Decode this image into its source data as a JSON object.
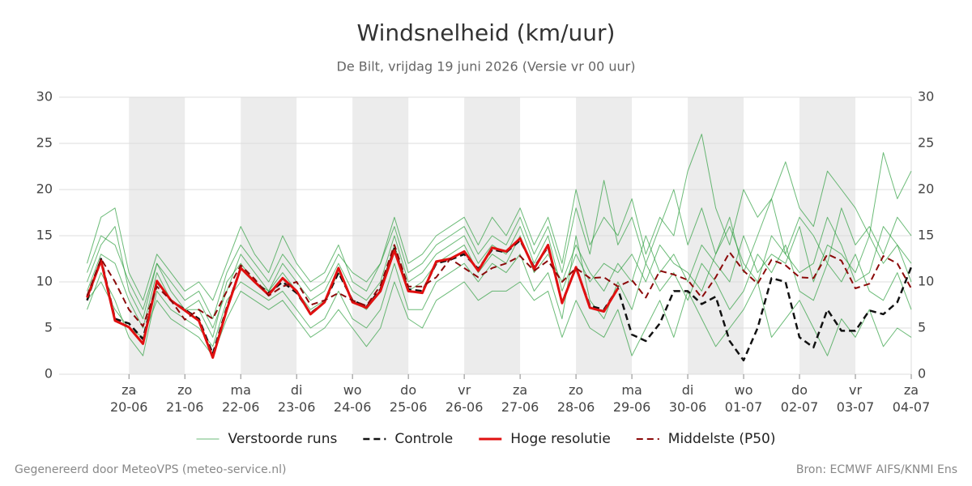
{
  "chart_data": {
    "type": "line",
    "title": "Windsnelheid (km/uur)",
    "subtitle": "De Bilt, vrijdag 19 juni 2026 (Versie vr 00 uur)",
    "footer_left": "Gegenereerd door MeteoVPS (meteo-service.nl)",
    "footer_right": "Bron: ECMWF AIFS/KNMI Ens",
    "x": [
      6,
      12,
      18,
      24,
      30,
      36,
      42,
      48,
      54,
      60,
      66,
      72,
      78,
      84,
      90,
      96,
      102,
      108,
      114,
      120,
      126,
      132,
      138,
      144,
      150,
      156,
      162,
      168,
      174,
      180,
      186,
      192,
      198,
      204,
      210,
      216,
      222,
      228,
      234,
      240,
      246,
      252,
      258,
      264,
      270,
      276,
      282,
      288,
      294,
      300,
      306,
      312,
      318,
      324,
      330,
      336,
      342,
      348,
      354,
      360
    ],
    "xlim": [
      -6,
      360
    ],
    "xticks": [
      {
        "value": 24,
        "label": "za\n20-06"
      },
      {
        "value": 48,
        "label": "zo\n21-06"
      },
      {
        "value": 72,
        "label": "ma\n22-06"
      },
      {
        "value": 96,
        "label": "di\n23-06"
      },
      {
        "value": 120,
        "label": "wo\n24-06"
      },
      {
        "value": 144,
        "label": "do\n25-06"
      },
      {
        "value": 168,
        "label": "vr\n26-06"
      },
      {
        "value": 192,
        "label": "za\n27-06"
      },
      {
        "value": 216,
        "label": "zo\n28-06"
      },
      {
        "value": 240,
        "label": "ma\n29-06"
      },
      {
        "value": 264,
        "label": "di\n30-06"
      },
      {
        "value": 288,
        "label": "wo\n01-07"
      },
      {
        "value": 312,
        "label": "do\n02-07"
      },
      {
        "value": 336,
        "label": "vr\n03-07"
      },
      {
        "value": 360,
        "label": "za\n04-07"
      }
    ],
    "ylim": [
      0,
      30
    ],
    "yticks": [
      0,
      5,
      10,
      15,
      20,
      25,
      30
    ],
    "grid": true,
    "ensemble": {
      "name": "Verstoorde runs",
      "color": "#2e9e3e",
      "members": [
        [
          10,
          14,
          16,
          9,
          6,
          12,
          9,
          7,
          8,
          5,
          9,
          13,
          11,
          9,
          12,
          10,
          8,
          9,
          12,
          9,
          8,
          10,
          15,
          10,
          11,
          13,
          14,
          15,
          12,
          14,
          13,
          16,
          12,
          15,
          9,
          13,
          10,
          12,
          11,
          13,
          10,
          14,
          12,
          11,
          9,
          13,
          16,
          12,
          10,
          15,
          13,
          11,
          12,
          17,
          14,
          10,
          11,
          16,
          14,
          12
        ],
        [
          7,
          11,
          8,
          4,
          2,
          9,
          7,
          6,
          5,
          3,
          8,
          10,
          9,
          8,
          9,
          7,
          5,
          6,
          9,
          6,
          5,
          7,
          12,
          7,
          7,
          10,
          11,
          12,
          10,
          12,
          11,
          13,
          9,
          11,
          6,
          15,
          8,
          6,
          10,
          7,
          12,
          9,
          11,
          8,
          12,
          10,
          7,
          9,
          13,
          11,
          14,
          9,
          8,
          12,
          10,
          13,
          9,
          8,
          11,
          7
        ],
        [
          12,
          17,
          18,
          11,
          8,
          13,
          11,
          9,
          10,
          8,
          12,
          16,
          13,
          11,
          15,
          12,
          10,
          11,
          14,
          10,
          9,
          12,
          17,
          12,
          13,
          15,
          16,
          17,
          14,
          17,
          15,
          18,
          14,
          17,
          12,
          20,
          14,
          17,
          15,
          19,
          13,
          17,
          15,
          22,
          26,
          18,
          14,
          20,
          17,
          19,
          23,
          18,
          16,
          22,
          20,
          18,
          15,
          24,
          19,
          22
        ],
        [
          8,
          10,
          7,
          5,
          4,
          8,
          6,
          5,
          4,
          2,
          6,
          9,
          8,
          7,
          8,
          6,
          4,
          5,
          7,
          5,
          3,
          5,
          10,
          6,
          5,
          8,
          9,
          10,
          8,
          9,
          9,
          10,
          8,
          9,
          4,
          8,
          5,
          4,
          7,
          2,
          5,
          8,
          4,
          9,
          6,
          3,
          5,
          7,
          10,
          4,
          6,
          8,
          5,
          2,
          6,
          4,
          7,
          3,
          5,
          4
        ],
        [
          9,
          13,
          12,
          8,
          5,
          11,
          8,
          7,
          7,
          4,
          10,
          12,
          10,
          9,
          11,
          9,
          7,
          8,
          11,
          8,
          7,
          9,
          14,
          9,
          10,
          12,
          13,
          14,
          11,
          13,
          12,
          15,
          11,
          13,
          10,
          14,
          11,
          9,
          12,
          10,
          15,
          11,
          13,
          10,
          14,
          12,
          10,
          15,
          11,
          13,
          12,
          16,
          10,
          14,
          13,
          11,
          15,
          12,
          14,
          10
        ],
        [
          11,
          15,
          14,
          10,
          7,
          12,
          10,
          8,
          9,
          6,
          11,
          14,
          12,
          10,
          13,
          11,
          9,
          10,
          13,
          11,
          10,
          12,
          16,
          11,
          12,
          14,
          15,
          16,
          13,
          15,
          14,
          17,
          13,
          16,
          11,
          18,
          13,
          21,
          14,
          17,
          12,
          16,
          20,
          14,
          18,
          13,
          17,
          11,
          15,
          19,
          13,
          17,
          15,
          12,
          18,
          14,
          16,
          13,
          17,
          15
        ]
      ]
    },
    "series": [
      {
        "name": "Controle",
        "color": "#111111",
        "dash": true,
        "width": 2.5,
        "values": [
          8,
          12.5,
          6,
          5.5,
          3.8,
          10,
          8,
          7,
          6,
          2.2,
          7.2,
          11.5,
          10,
          8.8,
          10,
          8.8,
          6.6,
          7.8,
          11,
          8,
          7.3,
          9.2,
          13.6,
          9.2,
          9,
          12,
          12.4,
          13,
          11.4,
          13.5,
          13.2,
          14.5,
          11.6,
          13.8,
          7.8,
          11.5,
          7.4,
          7,
          9.3,
          4.3,
          3.6,
          5.5,
          9,
          9,
          7.6,
          8.4,
          3.6,
          1.5,
          5,
          10.4,
          10,
          4,
          2.9,
          7,
          4.7,
          4.7,
          6.9,
          6.5,
          7.8,
          11.6
        ]
      },
      {
        "name": "Hoge resolutie",
        "color": "#e01010",
        "dash": false,
        "width": 3,
        "values": [
          8.3,
          12.3,
          5.8,
          5.1,
          3.3,
          10.1,
          8,
          6.9,
          5.8,
          1.8,
          7,
          11.5,
          10,
          8.6,
          10.4,
          9,
          6.5,
          7.8,
          11.5,
          7.8,
          7.2,
          9,
          13.4,
          9,
          8.8,
          12.2,
          12.5,
          13.3,
          11.2,
          13.7,
          13.3,
          14.7,
          11.4,
          14,
          7.7,
          11.6,
          7.2,
          6.8,
          9.3,
          null,
          null,
          null,
          null,
          null,
          null,
          null,
          null,
          null,
          null,
          null,
          null,
          null,
          null,
          null,
          null,
          null,
          null,
          null,
          null,
          null
        ]
      },
      {
        "name": "Middelste (P50)",
        "color": "#8b0a0a",
        "dash": true,
        "width": 2,
        "values": [
          8.5,
          12.5,
          10,
          7,
          5.2,
          9.5,
          8,
          5.9,
          7,
          6,
          9,
          11.8,
          10.3,
          8.5,
          9.5,
          10,
          7.5,
          8,
          8.8,
          8,
          7.4,
          9.6,
          14,
          9.5,
          9.5,
          10.5,
          12.5,
          11.5,
          10.5,
          11.5,
          12,
          12.8,
          11.2,
          12.3,
          10,
          11.5,
          10.4,
          10.5,
          9.5,
          10.2,
          8.3,
          11.2,
          10.8,
          10.2,
          8.3,
          10.5,
          13.2,
          11.2,
          9.8,
          12.4,
          11.8,
          10.5,
          10.4,
          13,
          12.3,
          9.3,
          9.8,
          12.8,
          12,
          9.3
        ]
      }
    ]
  }
}
